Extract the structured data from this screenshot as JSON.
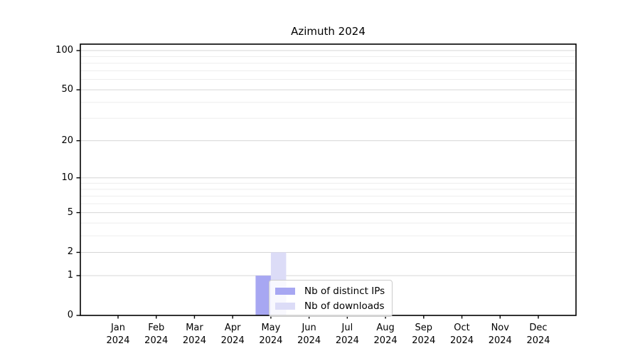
{
  "chart_data": {
    "type": "bar",
    "title": "Azimuth 2024",
    "x_months": [
      "Jan",
      "Feb",
      "Mar",
      "Apr",
      "May",
      "Jun",
      "Jul",
      "Aug",
      "Sep",
      "Oct",
      "Nov",
      "Dec"
    ],
    "x_year": "2024",
    "series": [
      {
        "name": "Nb of distinct IPs",
        "color": "#a7a7f2",
        "values": [
          0,
          0,
          0,
          0,
          1,
          0,
          0,
          0,
          0,
          0,
          0,
          0
        ]
      },
      {
        "name": "Nb of downloads",
        "color": "#dcdcf7",
        "values": [
          0,
          0,
          0,
          0,
          2,
          0,
          0,
          0,
          0,
          0,
          0,
          0
        ]
      }
    ],
    "xlabel": "",
    "ylabel": "",
    "yscale": "log1p",
    "ylim": [
      0,
      112
    ],
    "yticks": [
      0,
      1,
      2,
      5,
      10,
      20,
      50,
      100
    ],
    "yticks_minor": [
      3,
      4,
      6,
      7,
      8,
      9,
      30,
      40,
      60,
      70,
      80,
      90
    ],
    "grid": "horizontal-major-and-minor",
    "legend_position": "lower-center-inside",
    "bar_width_fraction": 0.4,
    "colors": {
      "spine": "#000000",
      "grid_major": "#d6d6d6",
      "grid_minor": "#ededed",
      "text": "#000000"
    }
  }
}
